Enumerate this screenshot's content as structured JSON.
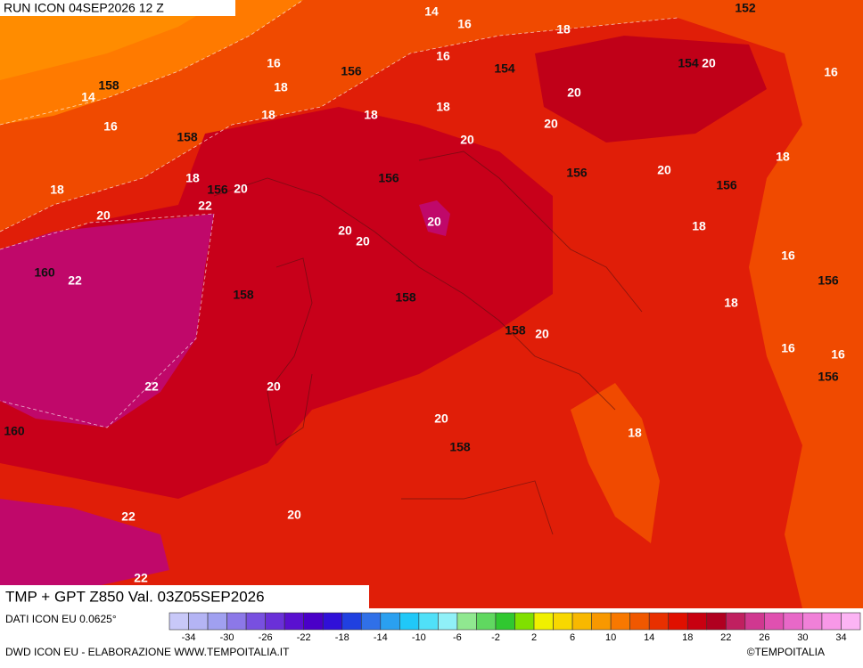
{
  "header": {
    "run": "RUN ICON 04SEP2026 12 Z"
  },
  "map": {
    "product": "TMP + GPT Z850 Val. 03Z05SEP2026",
    "temperature_labels": [
      "14",
      "16",
      "18",
      "16",
      "16",
      "20",
      "16",
      "14",
      "18",
      "20",
      "18",
      "18",
      "18",
      "16",
      "20",
      "20",
      "18",
      "18",
      "20",
      "20",
      "18",
      "22",
      "20",
      "20",
      "18",
      "20",
      "20",
      "16",
      "22",
      "18",
      "20",
      "16",
      "16",
      "22",
      "20",
      "20",
      "18",
      "22",
      "20",
      "22"
    ],
    "geopotential_labels": [
      "152",
      "156",
      "154",
      "154",
      "158",
      "158",
      "156",
      "156",
      "156",
      "156",
      "160",
      "158",
      "158",
      "156",
      "158",
      "156",
      "160",
      "158"
    ]
  },
  "footer": {
    "source": "DATI ICON EU 0.0625°",
    "credit": "DWD ICON EU - ELABORAZIONE WWW.TEMPOITALIA.IT",
    "copyright": "©TEMPOITALIA",
    "scale_labels": [
      -34,
      -30,
      -26,
      -22,
      -18,
      -14,
      -10,
      -6,
      -2,
      2,
      6,
      10,
      14,
      18,
      22,
      26,
      30,
      34
    ],
    "scale_colors": [
      "#c8c8f8",
      "#b4b4f4",
      "#a0a0f0",
      "#8c78e8",
      "#7850e0",
      "#6a30d8",
      "#5a10d0",
      "#4a00c8",
      "#3010d8",
      "#2040e0",
      "#3070e8",
      "#2aa0f0",
      "#20c8f8",
      "#50e0f8",
      "#90f0f8",
      "#90e890",
      "#60d860",
      "#30c830",
      "#80e000",
      "#f0f000",
      "#f8d800",
      "#f8b800",
      "#f89800",
      "#f87800",
      "#f05800",
      "#e83000",
      "#e01000",
      "#c80010",
      "#b00020",
      "#c02060",
      "#d03890",
      "#e050b0",
      "#e868c8",
      "#f080d8",
      "#f898e8",
      "#fcb4f4"
    ]
  }
}
